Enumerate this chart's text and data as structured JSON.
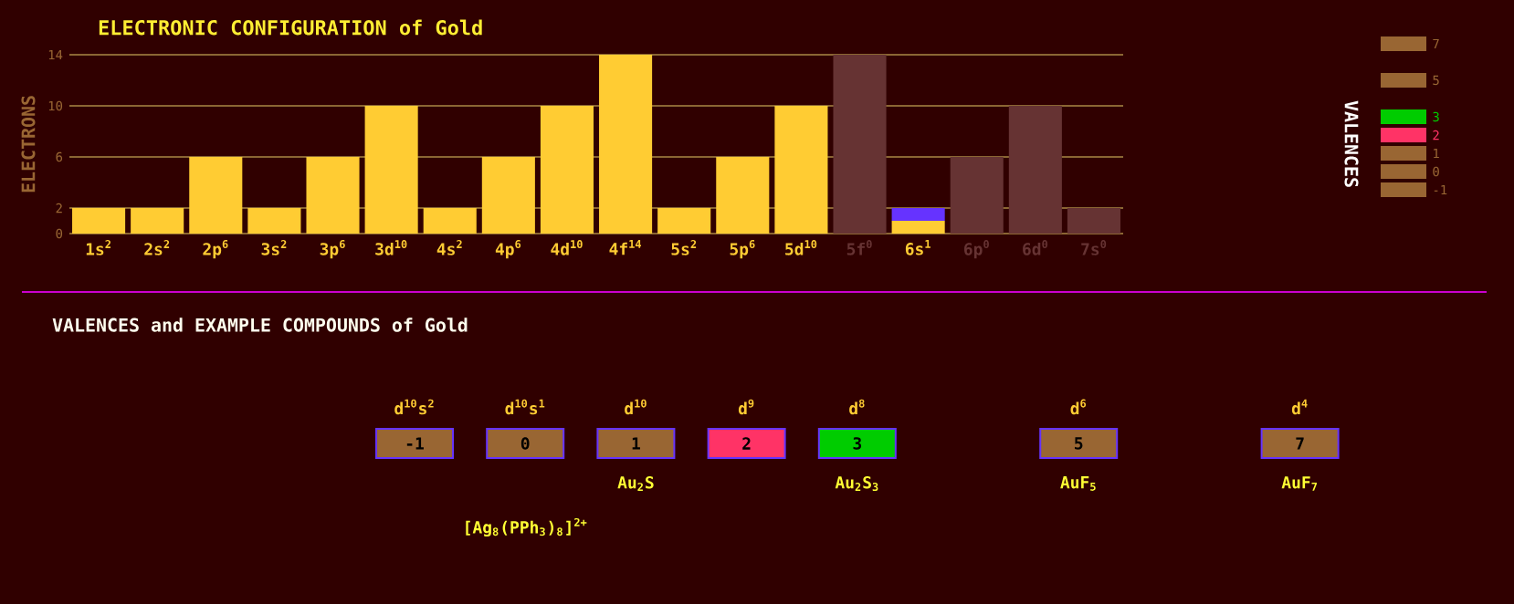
{
  "chart_data": [
    {
      "type": "bar",
      "title": "ELECTRONIC CONFIGURATION of Gold",
      "ylabel": "ELECTRONS",
      "stacked": true,
      "grid": "y",
      "ylim": [
        0,
        14
      ],
      "yticks": [
        0,
        2,
        6,
        10,
        14
      ],
      "categories": [
        "1s$^{2}$",
        "2s$^{2}$",
        "2p$^{6}$",
        "3s$^{2}$",
        "3p$^{6}$",
        "3d$^{10}$",
        "4s$^{2}$",
        "4p$^{6}$",
        "4d$^{10}$",
        "4f$^{14}$",
        "5s$^{2}$",
        "5p$^{6}$",
        "5d$^{10}$",
        "5f$^{0}$",
        "6s$^{1}$",
        "6p$^{0}$",
        "6d$^{0}$",
        "7s$^{0}$"
      ],
      "series": [
        {
          "color": "#ffcc33",
          "values": [
            2,
            2,
            6,
            2,
            6,
            10,
            2,
            6,
            10,
            14,
            2,
            6,
            10,
            0,
            1,
            0,
            0,
            0
          ]
        },
        {
          "colors": [
            "#663333",
            "#663333",
            "#663333",
            "#663333",
            "#663333",
            "#663333",
            "#663333",
            "#663333",
            "#663333",
            "#663333",
            "#663333",
            "#663333",
            "#663333",
            "#663333",
            "#6633ff",
            "#663333",
            "#663333",
            "#663333"
          ],
          "values": [
            0,
            0,
            0,
            0,
            0,
            0,
            0,
            0,
            0,
            0,
            0,
            0,
            0,
            14,
            1,
            6,
            10,
            2
          ]
        }
      ]
    },
    {
      "type": "other",
      "title": "VALENCES and EXAMPLE COMPOUNDS of Gold",
      "legend_title": "VALENCES",
      "values": [
        -1,
        0,
        1,
        2,
        3,
        5,
        7
      ],
      "value_labels": [
        "-1",
        "0",
        "1",
        "2",
        "3",
        "5",
        "7"
      ],
      "categories": [
        "d$^{10}$s$^{2}$",
        "d$^{10}$s$^{1}$",
        "d$^{10}$",
        "d$^{9}$",
        "d$^{8}$",
        "d$^{6}$",
        "d$^{4}$"
      ],
      "colors": [
        "#996633",
        "#996633",
        "#996633",
        "#ff3366",
        "#00cc00",
        "#996633",
        "#996633"
      ],
      "annotations": [
        {
          "text": "Au$_{2}$S",
          "x": "d$^{10}$"
        },
        {
          "text": "Au$_{2}$S$_{3}$",
          "x": "d$^{8}$"
        },
        {
          "text": "AuF$_{5}$",
          "x": "d$^{6}$"
        },
        {
          "text": "AuF$_{7}$",
          "x": "d$^{4}$"
        },
        {
          "text": "[Ag$_{8}$(PPh$_{3}$)$_{8}$]$^{2+}$",
          "x": "d$^{10}$s$^{1}$"
        }
      ]
    }
  ]
}
